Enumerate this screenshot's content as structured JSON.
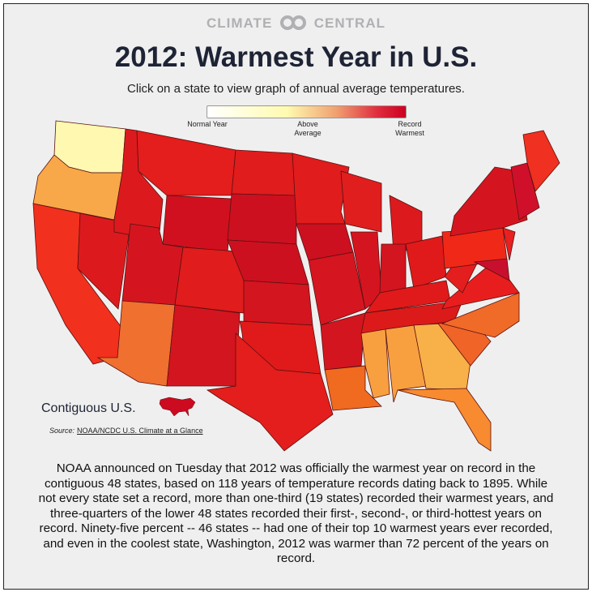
{
  "brand": {
    "left": "CLIMATE",
    "right": "CENTRAL"
  },
  "title": "2012: Warmest Year in U.S.",
  "subtitle": "Click on a state to view graph of annual average temperatures.",
  "legend": {
    "low": "Normal Year",
    "mid": "Above Average",
    "high": "Record Warmest"
  },
  "contiguous_label": "Contiguous U.S.",
  "source_label": "Source:",
  "source_link": "NOAA/NCDC U.S. Climate at a Glance",
  "description": "NOAA announced on Tuesday that 2012 was officially the warmest year on record in the contiguous 48 states, based on 118 years of temperature records dating back to 1895. While not every state set a record, more than one-third (19 states) recorded their warmest years, and three-quarters of the lower 48 states recorded their first-, second-, or third-hottest years on record. Ninety-five percent -- 46 states -- had one of their top 10 warmest years ever recorded, and even in the coolest state, Washington, 2012 was warmer than 72 percent of the years on record.",
  "colors": {
    "WA": "#fff8b0",
    "OR": "#f8a848",
    "CA": "#f2301e",
    "NV": "#dc1a1e",
    "ID": "#dc1a1e",
    "MT": "#e41d1d",
    "WY": "#d0101f",
    "UT": "#d41520",
    "AZ": "#f07030",
    "CO": "#e01c1c",
    "NM": "#d31520",
    "ND": "#e01c1c",
    "SD": "#cc1020",
    "NE": "#cc1020",
    "KS": "#d31520",
    "OK": "#e01a1a",
    "TX": "#e31e1c",
    "MN": "#e01c1c",
    "IA": "#cc1020",
    "MO": "#d51520",
    "AR": "#d31520",
    "LA": "#f06a20",
    "WI": "#e01e1e",
    "IL": "#d41520",
    "MI": "#dc1a1e",
    "IN": "#d31520",
    "OH": "#e01a1a",
    "KY": "#e01a1a",
    "TN": "#dc1a1a",
    "MS": "#f8a040",
    "AL": "#f8a040",
    "GA": "#f8b048",
    "FL": "#f88a30",
    "SC": "#f06428",
    "NC": "#f06a28",
    "VA": "#e81e1e",
    "WV": "#e41e1e",
    "PA": "#f02818",
    "NY": "#d41520",
    "MD": "#c8102e",
    "NJ": "#e82020",
    "NE_REG": "#d0102a",
    "ME": "#f03020",
    "US": "#cc0a20"
  }
}
